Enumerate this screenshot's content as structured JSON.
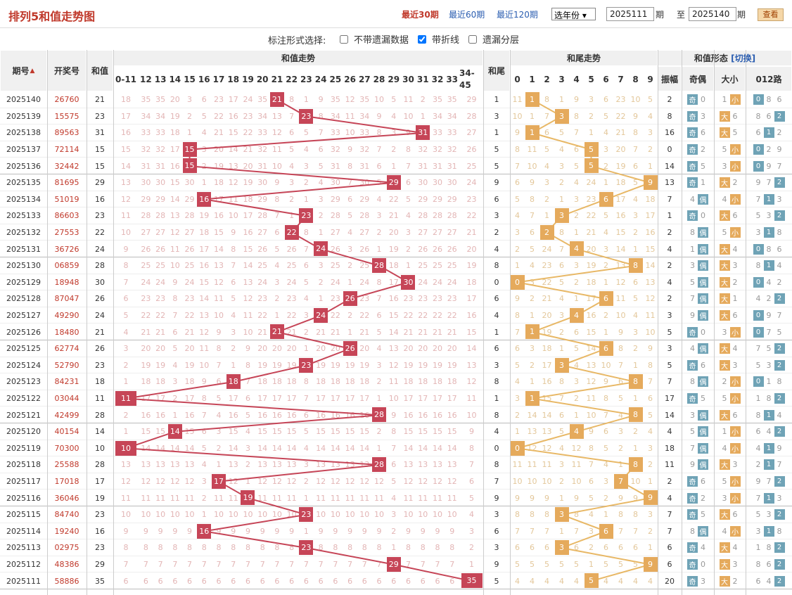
{
  "title": "排列5和值走势图",
  "top_links": [
    "最近30期",
    "最近60期",
    "最近120期"
  ],
  "year_select": "选年份",
  "from_issue": "2025111",
  "issue_unit": "期",
  "to_label": "至",
  "to_issue": "2025140",
  "query_label": "查看",
  "options": {
    "label": "标注形式选择:",
    "items": [
      {
        "label": "不带遗漏数据",
        "checked": false
      },
      {
        "label": "带折线",
        "checked": true
      },
      {
        "label": "遗漏分层",
        "checked": false
      }
    ]
  },
  "headers": {
    "issue": "期号",
    "draw": "开奖号",
    "sum": "和值",
    "sum_trend": "和值走势",
    "tail": "和尾",
    "tail_trend": "和尾走势",
    "form": "和值形态",
    "switch": "[切换]",
    "amp": "振幅",
    "odd_even": "奇偶",
    "size": "大小",
    "route": "012路",
    "sum_cols": [
      "0-11",
      "12",
      "13",
      "14",
      "15",
      "16",
      "17",
      "18",
      "19",
      "20",
      "21",
      "22",
      "23",
      "24",
      "25",
      "26",
      "27",
      "28",
      "29",
      "30",
      "31",
      "32",
      "33",
      "34-45"
    ],
    "tail_cols": [
      "0",
      "1",
      "2",
      "3",
      "4",
      "5",
      "6",
      "7",
      "8",
      "9"
    ]
  },
  "colors": {
    "sum_hit": "#c64557",
    "tail_hit": "#e5aa5c",
    "sum_line": "#c64557",
    "tail_line": "#e8b866"
  },
  "rows": [
    {
      "issue": "2025140",
      "draw": "26760",
      "sum": 21,
      "tail": 1,
      "amp": 2
    },
    {
      "issue": "2025139",
      "draw": "15575",
      "sum": 23,
      "tail": 3,
      "amp": 8
    },
    {
      "issue": "2025138",
      "draw": "89563",
      "sum": 31,
      "tail": 1,
      "amp": 16
    },
    {
      "issue": "2025137",
      "draw": "72114",
      "sum": 15,
      "tail": 5,
      "amp": 0
    },
    {
      "issue": "2025136",
      "draw": "32442",
      "sum": 15,
      "tail": 5,
      "amp": 14
    },
    {
      "issue": "2025135",
      "draw": "81695",
      "sum": 29,
      "tail": 9,
      "amp": 13
    },
    {
      "issue": "2025134",
      "draw": "51019",
      "sum": 16,
      "tail": 6,
      "amp": 7
    },
    {
      "issue": "2025133",
      "draw": "86603",
      "sum": 23,
      "tail": 3,
      "amp": 1
    },
    {
      "issue": "2025132",
      "draw": "27553",
      "sum": 22,
      "tail": 2,
      "amp": 2
    },
    {
      "issue": "2025131",
      "draw": "36726",
      "sum": 24,
      "tail": 4,
      "amp": 4
    },
    {
      "issue": "2025130",
      "draw": "06859",
      "sum": 28,
      "tail": 8,
      "amp": 2
    },
    {
      "issue": "2025129",
      "draw": "18948",
      "sum": 30,
      "tail": 0,
      "amp": 4
    },
    {
      "issue": "2025128",
      "draw": "87047",
      "sum": 26,
      "tail": 6,
      "amp": 2
    },
    {
      "issue": "2025127",
      "draw": "49290",
      "sum": 24,
      "tail": 4,
      "amp": 3
    },
    {
      "issue": "2025126",
      "draw": "18480",
      "sum": 21,
      "tail": 1,
      "amp": 5
    },
    {
      "issue": "2025125",
      "draw": "62774",
      "sum": 26,
      "tail": 6,
      "amp": 3
    },
    {
      "issue": "2025124",
      "draw": "52790",
      "sum": 23,
      "tail": 3,
      "amp": 5
    },
    {
      "issue": "2025123",
      "draw": "84231",
      "sum": 18,
      "tail": 8,
      "amp": 7
    },
    {
      "issue": "2025122",
      "draw": "03044",
      "sum": 11,
      "tail": 1,
      "amp": 17
    },
    {
      "issue": "2025121",
      "draw": "42499",
      "sum": 28,
      "tail": 8,
      "amp": 14
    },
    {
      "issue": "2025120",
      "draw": "40154",
      "sum": 14,
      "tail": 4,
      "amp": 4
    },
    {
      "issue": "2025119",
      "draw": "70300",
      "sum": 10,
      "tail": 0,
      "amp": 18
    },
    {
      "issue": "2025118",
      "draw": "25588",
      "sum": 28,
      "tail": 8,
      "amp": 11
    },
    {
      "issue": "2025117",
      "draw": "17018",
      "sum": 17,
      "tail": 7,
      "amp": 2
    },
    {
      "issue": "2025116",
      "draw": "36046",
      "sum": 19,
      "tail": 9,
      "amp": 4
    },
    {
      "issue": "2025115",
      "draw": "84740",
      "sum": 23,
      "tail": 3,
      "amp": 7
    },
    {
      "issue": "2025114",
      "draw": "19240",
      "sum": 16,
      "tail": 6,
      "amp": 7
    },
    {
      "issue": "2025113",
      "draw": "02975",
      "sum": 23,
      "tail": 3,
      "amp": 6
    },
    {
      "issue": "2025112",
      "draw": "48386",
      "sum": 29,
      "tail": 9,
      "amp": 6
    },
    {
      "issue": "2025111",
      "draw": "58886",
      "sum": 35,
      "tail": 5,
      "amp": 20
    }
  ]
}
